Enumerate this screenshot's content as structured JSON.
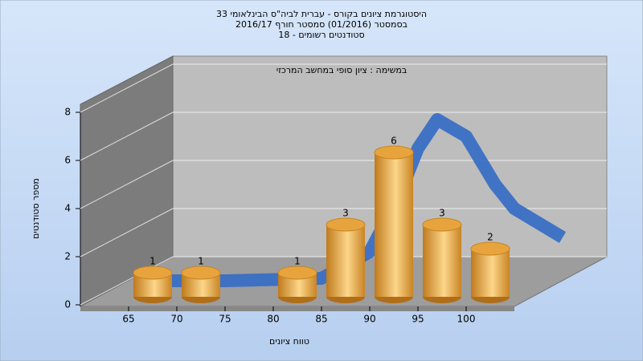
{
  "chart_data": {
    "type": "histogram",
    "title": "היסטוגרמת ציונים בקורס - עברית לביה\"ס הבינלאומי 33",
    "subtitle": "בסמסטר  (01/2016)  סמסטר חורף 2016/17",
    "subtitle2": "סטודנטים רשומים - 18",
    "annotation": "במשימה : ציון סופי במחשב המרכזי",
    "x_label": "טווח ציונים",
    "y_label": "מספר סטודנטים",
    "bins": [
      65,
      70,
      75,
      80,
      85,
      90,
      95,
      100,
      105
    ],
    "values": [
      1,
      1,
      null,
      1,
      3,
      6,
      3,
      2
    ],
    "color": "#e8a43c",
    "xticks": [
      65,
      70,
      75,
      80,
      85,
      90,
      95,
      100
    ],
    "ylim": [
      0,
      8
    ],
    "yticks": [
      0,
      2,
      4,
      6,
      8
    ],
    "grid": true,
    "curve": {
      "color": "#3a6fc4",
      "x": [
        61,
        70,
        80,
        85,
        88,
        90,
        92,
        95,
        98,
        100,
        105
      ],
      "values": [
        0,
        0,
        0.1,
        1.2,
        3.5,
        5.5,
        6.7,
        6,
        4,
        3,
        1.8
      ]
    }
  }
}
